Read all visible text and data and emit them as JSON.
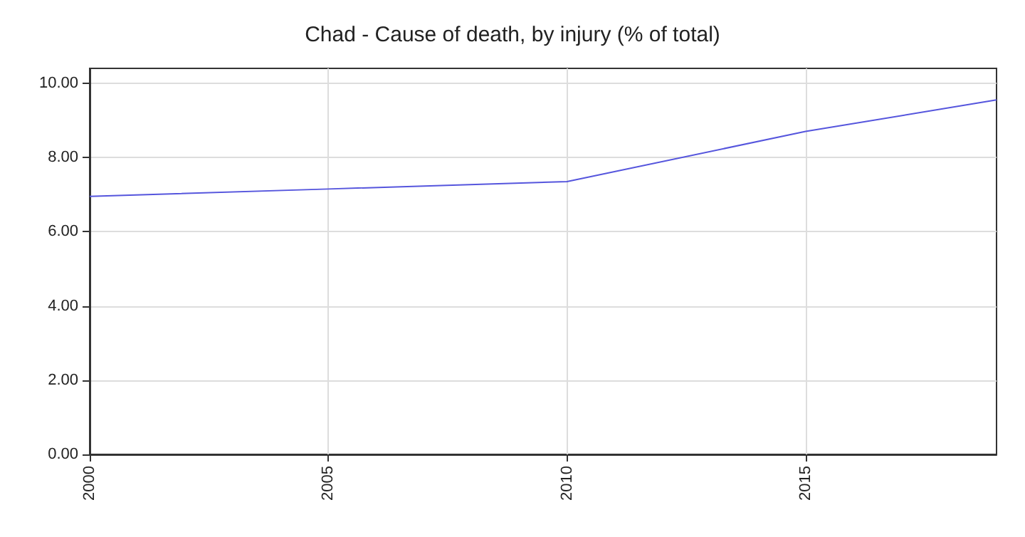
{
  "chart_data": {
    "type": "line",
    "title": "Chad - Cause of death, by injury (% of total)",
    "x": [
      2000,
      2005,
      2010,
      2015,
      2019
    ],
    "series": [
      {
        "color": "#5555dd",
        "values": [
          6.95,
          7.15,
          7.35,
          8.7,
          9.55
        ]
      }
    ],
    "xlim": [
      2000,
      2019
    ],
    "xticks": [
      2000,
      2005,
      2010,
      2015
    ],
    "ylim": [
      0,
      10.4
    ],
    "yticks": [
      {
        "value": 0,
        "label": "0.00"
      },
      {
        "value": 2,
        "label": "2.00"
      },
      {
        "value": 4,
        "label": "4.00"
      },
      {
        "value": 6,
        "label": "6.00"
      },
      {
        "value": 8,
        "label": "8.00"
      },
      {
        "value": 10,
        "label": "10.00"
      }
    ],
    "grid": true,
    "marker": "none",
    "line_style": "solid"
  }
}
